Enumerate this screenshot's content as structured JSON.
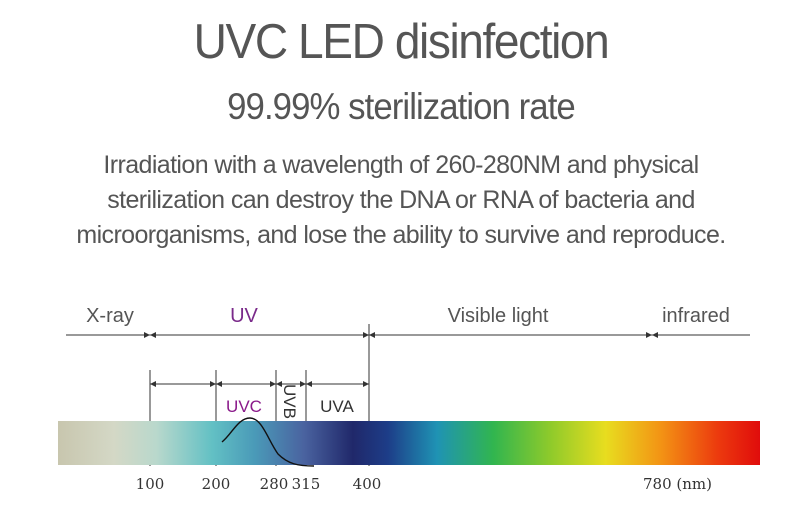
{
  "title": "UVC LED disinfection",
  "subtitle": "99.99% sterilization rate",
  "description": {
    "line1": "Irradiation with a wavelength of 260-280NM and physical",
    "line2": "sterilization can destroy the DNA or RNA of bacteria and",
    "line3": "microorganisms, and lose the ability to survive and reproduce."
  },
  "spectrum": {
    "bands": {
      "xray": "X-ray",
      "uv": "UV",
      "visible": "Visible light",
      "infrared": "infrared"
    },
    "sub_bands": {
      "uvc": "UVC",
      "uvb": "UVB",
      "uva": "UVA"
    },
    "ticks": {
      "t100": "100",
      "t200": "200",
      "t280": "280",
      "t315": "315",
      "t400": "400",
      "t780": "780 (nm)"
    },
    "colors": {
      "uv_label": "#7a2a8a",
      "uvc_label": "#8a1a8a",
      "text": "#555555"
    }
  }
}
